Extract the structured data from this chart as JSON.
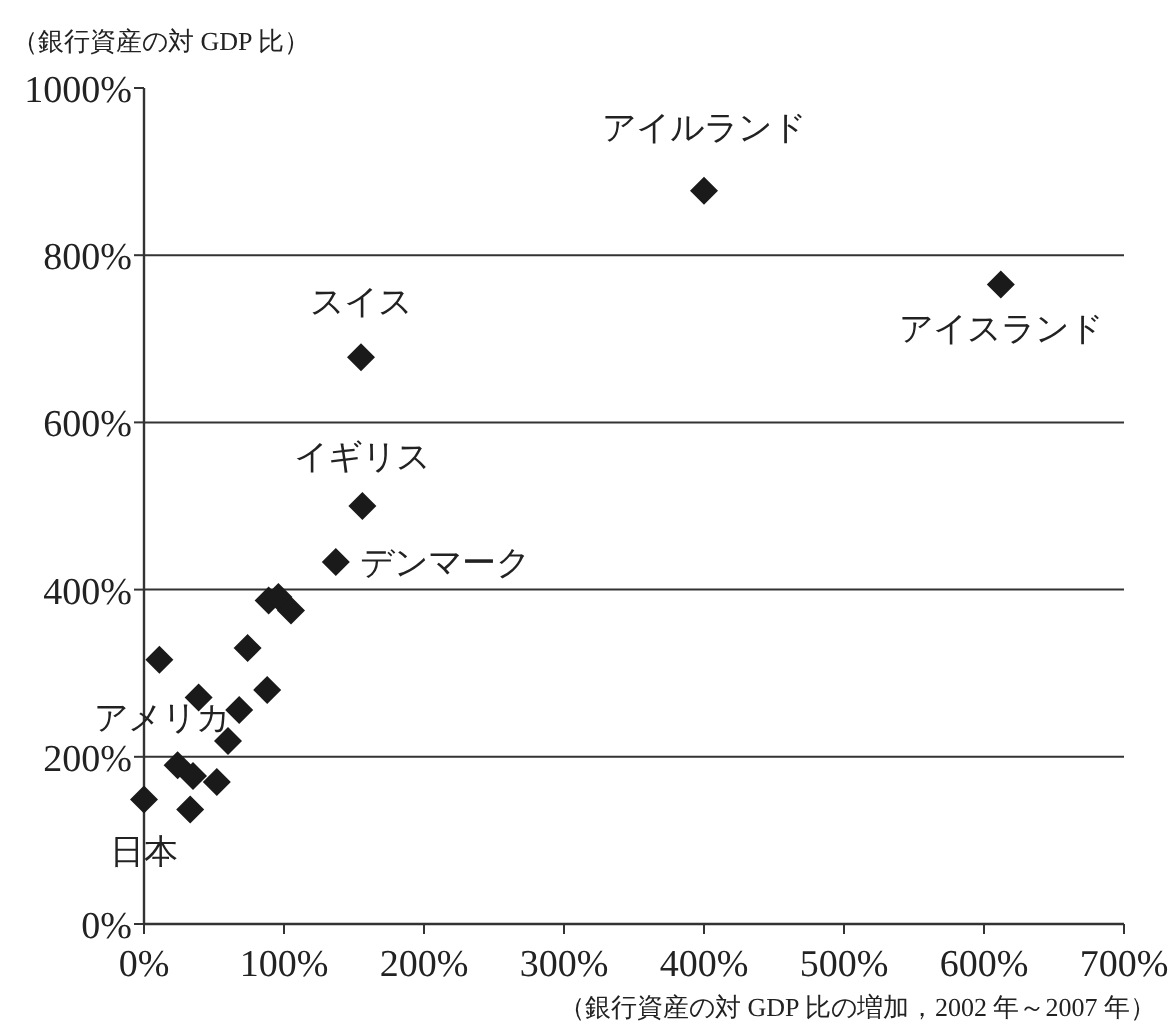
{
  "chart_data": {
    "type": "scatter",
    "xlabel": "（銀行資産の対 GDP 比の増加，2002 年～2007 年）",
    "ylabel": "（銀行資産の対 GDP 比）",
    "xlim": [
      0,
      700
    ],
    "ylim": [
      0,
      1000
    ],
    "xticks": [
      {
        "value": 0,
        "label": "0%"
      },
      {
        "value": 100,
        "label": "100%"
      },
      {
        "value": 200,
        "label": "200%"
      },
      {
        "value": 300,
        "label": "300%"
      },
      {
        "value": 400,
        "label": "400%"
      },
      {
        "value": 500,
        "label": "500%"
      },
      {
        "value": 600,
        "label": "600%"
      },
      {
        "value": 700,
        "label": "700%"
      }
    ],
    "yticks": [
      {
        "value": 0,
        "label": "0%"
      },
      {
        "value": 200,
        "label": "200%"
      },
      {
        "value": 400,
        "label": "400%"
      },
      {
        "value": 600,
        "label": "600%"
      },
      {
        "value": 800,
        "label": "800%"
      },
      {
        "value": 1000,
        "label": "1000%"
      }
    ],
    "grid": "y",
    "marker": "diamond",
    "series": [
      {
        "color": "#1a1a1a",
        "x": [
          400,
          155,
          612,
          156,
          137,
          24,
          0,
          89,
          96,
          105,
          11,
          74,
          39,
          88,
          68,
          60,
          35,
          52,
          33
        ],
        "values": [
          877,
          678,
          765,
          500,
          433,
          190,
          149,
          387,
          391,
          375,
          316,
          330,
          271,
          280,
          256,
          219,
          177,
          170,
          137
        ]
      }
    ],
    "annotations": [
      {
        "text": "アイルランド",
        "x": 400,
        "y": 877
      },
      {
        "text": "スイス",
        "x": 155,
        "y": 678
      },
      {
        "text": "アイスランド",
        "x": 612,
        "y": 765
      },
      {
        "text": "イギリス",
        "x": 156,
        "y": 500
      },
      {
        "text": "デンマーク",
        "x": 137,
        "y": 433
      },
      {
        "text": "アメリカ",
        "x": 24,
        "y": 190
      },
      {
        "text": "日本",
        "x": 0,
        "y": 149
      }
    ]
  }
}
